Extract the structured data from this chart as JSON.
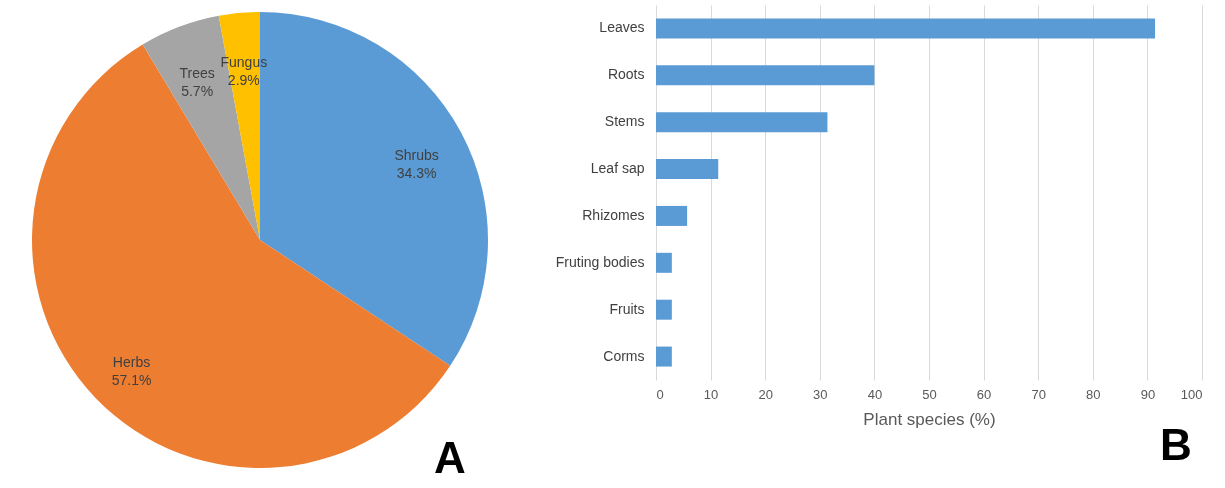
{
  "chart_data": [
    {
      "type": "pie",
      "categories": [
        "Shrubs",
        "Herbs",
        "Trees",
        "Fungus"
      ],
      "values": [
        34.3,
        57.1,
        5.7,
        2.9
      ],
      "value_labels": [
        "34.3%",
        "57.1%",
        "5.7%",
        "2.9%"
      ],
      "colors": [
        "#5b9bd5",
        "#ed7d31",
        "#a5a5a5",
        "#ffc000"
      ],
      "annotations": [
        "A"
      ]
    },
    {
      "type": "bar",
      "orientation": "horizontal",
      "categories": [
        "Leaves",
        "Roots",
        "Stems",
        "Leaf sap",
        "Rhizomes",
        "Fruting bodies",
        "Fruits",
        "Corms"
      ],
      "values": [
        91.4,
        40,
        31.4,
        11.4,
        5.7,
        2.9,
        2.9,
        2.9
      ],
      "color": "#5b9bd5",
      "xlabel": "Plant species (%)",
      "xlim": [
        0,
        100
      ],
      "xticks": [
        0,
        10,
        20,
        30,
        40,
        50,
        60,
        70,
        80,
        90,
        100
      ],
      "grid": "x",
      "annotations": [
        "B"
      ]
    }
  ]
}
